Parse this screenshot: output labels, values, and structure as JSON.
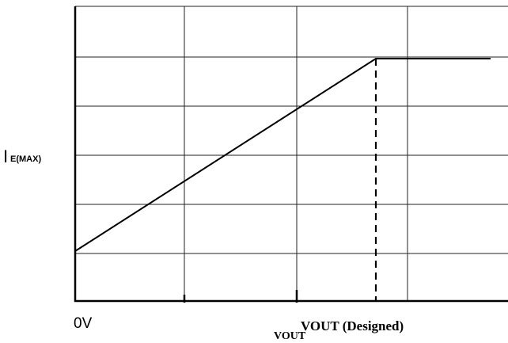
{
  "y_axis_label": {
    "main": "I",
    "subscript": "E(MAX)"
  },
  "x_axis_labels": {
    "origin": "0V",
    "vout": "VOUT",
    "vout_designed": "VOUT (Designed)"
  }
}
